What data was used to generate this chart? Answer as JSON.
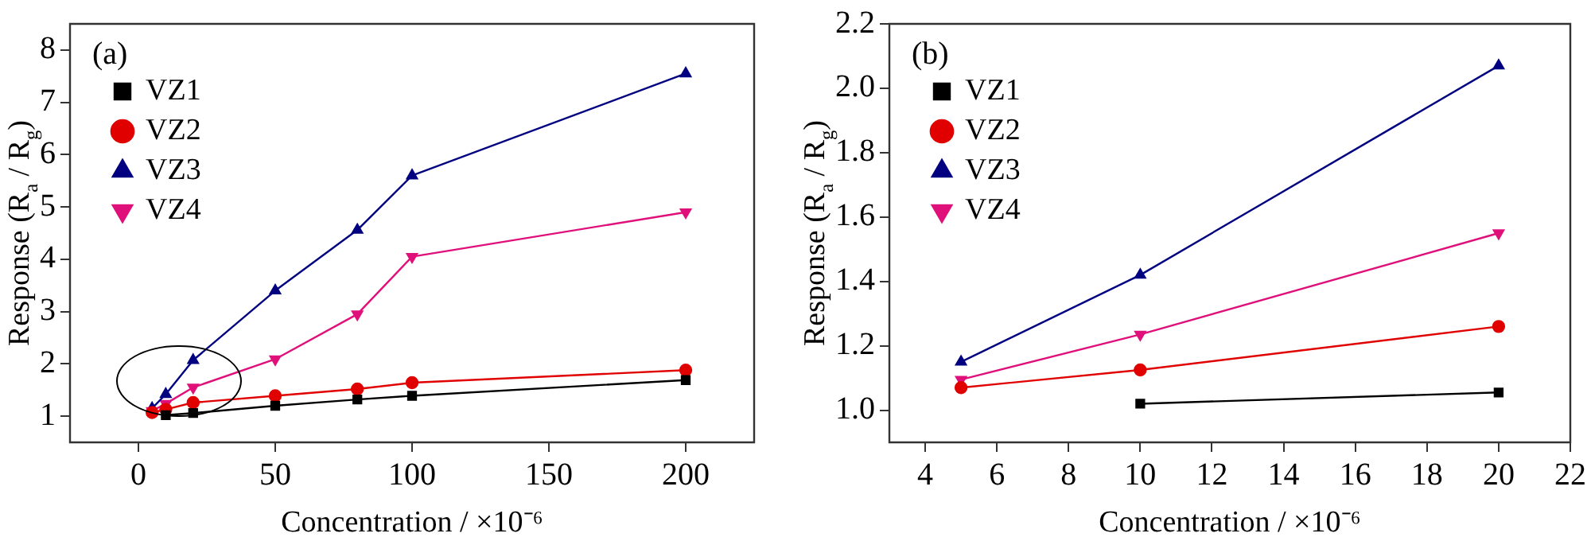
{
  "chart_data": [
    {
      "type": "line",
      "title": "(a)",
      "xlabel": "Concentration / ×10⁻⁶",
      "ylabel": "Response (R$_{a}$ / R$_{g}$)",
      "xlim": [
        -25,
        225
      ],
      "xticks": [
        0,
        50,
        100,
        150,
        200
      ],
      "ylim": [
        0.5,
        8.5
      ],
      "yticks": [
        1,
        2,
        3,
        4,
        5,
        6,
        7,
        8
      ],
      "grid": false,
      "legend": "top left",
      "line_style": "solid",
      "series": [
        {
          "name": "VZ1",
          "color": "#000000",
          "marker": "square",
          "x": [
            10,
            20,
            50,
            80,
            100,
            200
          ],
          "values": [
            1.02,
            1.06,
            1.2,
            1.32,
            1.39,
            1.69
          ]
        },
        {
          "name": "VZ2",
          "color": "#e00000",
          "marker": "circle",
          "x": [
            5,
            10,
            20,
            50,
            80,
            100,
            200
          ],
          "values": [
            1.07,
            1.13,
            1.26,
            1.39,
            1.52,
            1.64,
            1.88
          ]
        },
        {
          "name": "VZ3",
          "color": "#000080",
          "marker": "triangle",
          "x": [
            5,
            10,
            20,
            50,
            80,
            100,
            200
          ],
          "values": [
            1.15,
            1.42,
            2.07,
            3.4,
            4.56,
            5.6,
            7.55
          ]
        },
        {
          "name": "VZ4",
          "color": "#e0107a",
          "marker": "triangle-down",
          "x": [
            5,
            10,
            20,
            50,
            80,
            100,
            200
          ],
          "values": [
            1.1,
            1.24,
            1.55,
            2.09,
            2.95,
            4.05,
            4.9
          ]
        }
      ]
    },
    {
      "type": "line",
      "title": "(b)",
      "xlabel": "Concentration / ×10⁻⁶",
      "ylabel": "Response (R$_{a}$ / R$_{g}$)",
      "xlim": [
        3,
        22
      ],
      "xticks": [
        4,
        6,
        8,
        10,
        12,
        14,
        16,
        18,
        20,
        22
      ],
      "ylim": [
        0.9,
        2.2
      ],
      "yticks": [
        {
          "value": 1,
          "label": "1.0"
        },
        1.2,
        1.4,
        1.6,
        1.8,
        {
          "value": 2,
          "label": "2.0"
        },
        2.2
      ],
      "grid": false,
      "legend": "top left",
      "line_style": "solid",
      "series": [
        {
          "name": "VZ1",
          "color": "#000000",
          "marker": "square",
          "x": [
            10,
            20
          ],
          "values": [
            1.02,
            1.055
          ]
        },
        {
          "name": "VZ2",
          "color": "#e00000",
          "marker": "circle",
          "x": [
            5,
            10,
            20
          ],
          "values": [
            1.07,
            1.125,
            1.26
          ]
        },
        {
          "name": "VZ3",
          "color": "#000080",
          "marker": "triangle",
          "x": [
            5,
            10,
            20
          ],
          "values": [
            1.15,
            1.42,
            2.07
          ]
        },
        {
          "name": "VZ4",
          "color": "#e0107a",
          "marker": "triangle-down",
          "x": [
            5,
            10,
            20
          ],
          "values": [
            1.095,
            1.235,
            1.55
          ]
        }
      ]
    }
  ]
}
